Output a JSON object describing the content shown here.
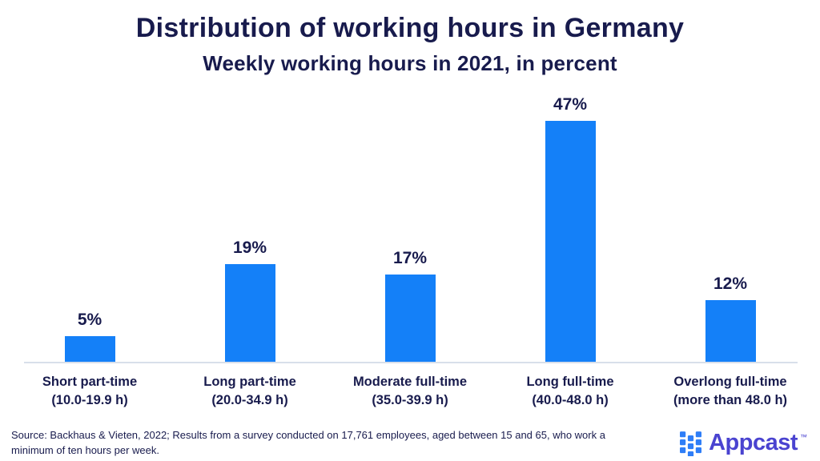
{
  "chart_data": {
    "type": "bar",
    "title": "Distribution of working hours in Germany",
    "subtitle": "Weekly working hours in 2021, in percent",
    "categories": [
      {
        "label": "Short part-time",
        "range": "(10.0-19.9 h)"
      },
      {
        "label": "Long part-time",
        "range": "(20.0-34.9 h)"
      },
      {
        "label": "Moderate full-time",
        "range": "(35.0-39.9 h)"
      },
      {
        "label": "Long full-time",
        "range": "(40.0-48.0 h)"
      },
      {
        "label": "Overlong full-time",
        "range": "(more than 48.0 h)"
      }
    ],
    "values": [
      5,
      19,
      17,
      47,
      12
    ],
    "value_labels": [
      "5%",
      "19%",
      "17%",
      "47%",
      "12%"
    ],
    "unit": "percent",
    "ylim": [
      0,
      50
    ],
    "grid": false,
    "legend": false,
    "bar_color": "#1480f8",
    "axis_line_color": "#d8dfea"
  },
  "theme": {
    "text_color": "#181b4d",
    "background": "#ffffff"
  },
  "footer": {
    "source": "Source: Backhaus & Vieten, 2022; Results from a survey conducted on 17,761 employees, aged between 15 and 65, who work a minimum of ten hours per week.",
    "logo": {
      "icon": "appcast-squares-icon",
      "brand": "Appcast",
      "trademark": "™",
      "text_color": "#4a43d0",
      "icon_color": "#2f7ef7"
    }
  }
}
